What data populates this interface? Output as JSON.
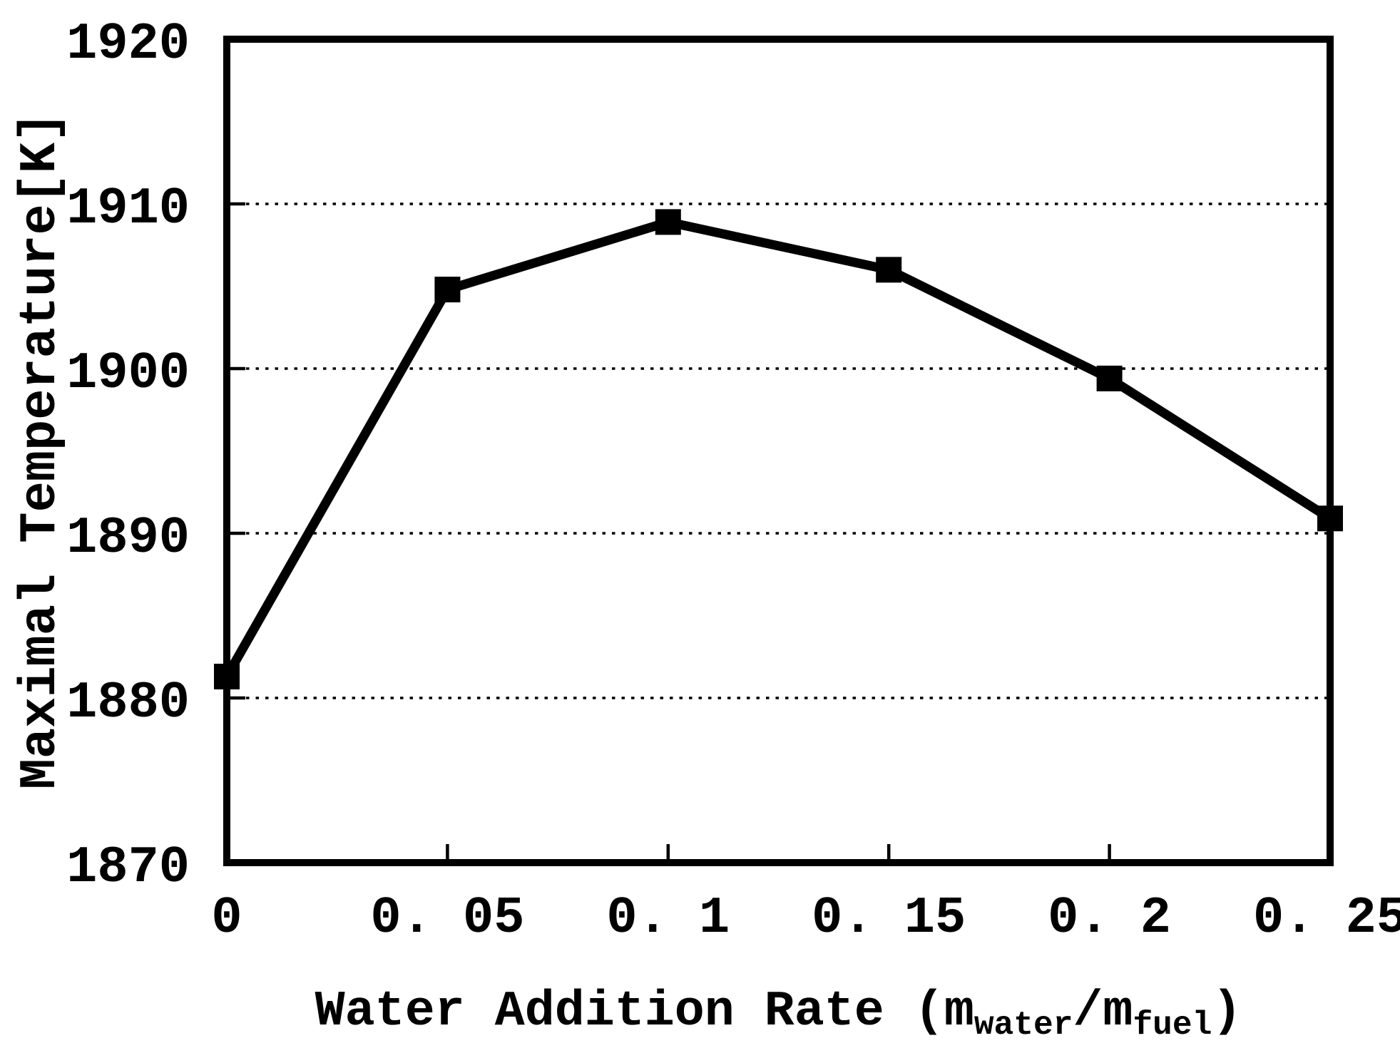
{
  "figure": {
    "background_color": "#ffffff",
    "ink_color": "#000000"
  },
  "chart_data": {
    "type": "line",
    "title": "",
    "xlabel": "Water Addition Rate (m_water/m_fuel)",
    "xlabel_segments": [
      {
        "text": "Water Addition Rate (m",
        "sub": false
      },
      {
        "text": "water",
        "sub": true
      },
      {
        "text": "/m",
        "sub": false
      },
      {
        "text": "fuel",
        "sub": true
      },
      {
        "text": ")",
        "sub": false
      }
    ],
    "ylabel": "Maximal Temperature[K]",
    "xlim": [
      0,
      0.25
    ],
    "ylim": [
      1870,
      1920
    ],
    "x_ticks": [
      {
        "value": 0,
        "label": "0"
      },
      {
        "value": 0.05,
        "label": "0. 05"
      },
      {
        "value": 0.1,
        "label": "0. 1"
      },
      {
        "value": 0.15,
        "label": "0. 15"
      },
      {
        "value": 0.2,
        "label": "0. 2"
      },
      {
        "value": 0.25,
        "label": "0. 25"
      }
    ],
    "y_ticks": [
      {
        "value": 1870,
        "label": "1870"
      },
      {
        "value": 1880,
        "label": "1880"
      },
      {
        "value": 1890,
        "label": "1890"
      },
      {
        "value": 1900,
        "label": "1900"
      },
      {
        "value": 1910,
        "label": "1910"
      },
      {
        "value": 1920,
        "label": "1920"
      }
    ],
    "grid": "horizontal-dotted",
    "legend": "none",
    "series": [
      {
        "name": "Maximal Temperature",
        "marker": "square",
        "color": "#000000",
        "x": [
          0,
          0.05,
          0.1,
          0.15,
          0.2,
          0.25
        ],
        "y": [
          1881.3,
          1904.8,
          1908.9,
          1906.0,
          1899.4,
          1890.9
        ]
      }
    ]
  }
}
